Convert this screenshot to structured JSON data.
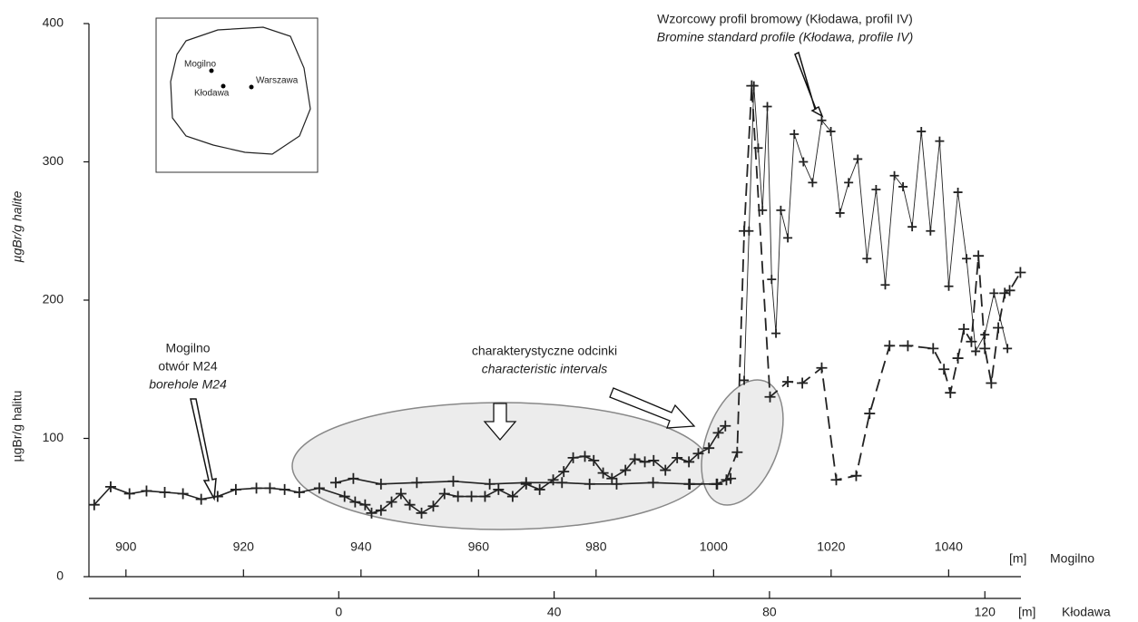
{
  "chart_data": {
    "type": "line",
    "y_title": "µgBr/g halite",
    "y_title_2": "µgBr/g halitu",
    "ylim": [
      0,
      400
    ],
    "yticks": [
      0,
      100,
      200,
      300,
      400
    ],
    "xlim": [
      893.7,
      1052.3
    ],
    "xticks": [
      900,
      920,
      940,
      960,
      980,
      1000,
      1020,
      1040
    ],
    "x_unit": "[m]",
    "x_name": "Mogilno",
    "x2lim": [
      -46.4,
      126.7
    ],
    "x2ticks": [
      0,
      40,
      80,
      120
    ],
    "x2_unit": "[m]",
    "x2_name": "Kłodawa",
    "annotations": {
      "standard_pl": "Wzorcowy profil bromowy (Kłodawa, profil IV)",
      "standard_en": "Bromine standard profile (Kłodawa, profile IV)",
      "bore_1": "Mogilno",
      "bore_2": "otwór M24",
      "bore_en": "borehole M24",
      "intervals_pl": "charakterystyczne odcinki",
      "intervals_en": "characteristic intervals"
    },
    "map_labels": [
      "Mogilno",
      "Kłodawa",
      "Warszawa"
    ],
    "series": [
      {
        "xaxis": "x",
        "color": "#222",
        "width": 1.6,
        "dash": "none",
        "marker_size": 6,
        "x": [
          894.6,
          897.4,
          900.6,
          903.5,
          906.6,
          909.7,
          912.8,
          915.6,
          918.7,
          922.2,
          924.5,
          927.0,
          929.5,
          932.9,
          937.2,
          939.0,
          940.7,
          941.8,
          943.4,
          945.2,
          946.8,
          948.3,
          950.3,
          952.3,
          954.2,
          956.5,
          958.8,
          961.1,
          963.4,
          965.8,
          968.1,
          970.4,
          972.7,
          974.5,
          976.1,
          978.1,
          979.6,
          981.2,
          982.7,
          985.0,
          986.6,
          988.3,
          989.8,
          991.8,
          993.8,
          995.8,
          997.4,
          999.2,
          1000.8,
          1002.0
        ],
        "values": [
          52,
          65,
          60,
          62,
          61,
          60,
          56,
          58,
          63,
          64,
          64,
          63,
          61,
          64,
          58,
          54,
          52,
          46,
          48,
          54,
          60,
          52,
          46,
          51,
          60,
          58,
          58,
          58,
          63,
          58,
          67,
          63,
          70,
          76,
          86,
          87,
          84,
          75,
          71,
          77,
          85,
          83,
          84,
          77,
          86,
          83,
          89,
          93,
          104,
          109
        ]
      },
      {
        "xaxis": "x",
        "color": "#222",
        "width": 1.6,
        "dash": "none",
        "marker_size": 6,
        "x": [
          935.7,
          938.7,
          943.4,
          949.5,
          955.7,
          961.9,
          968.1,
          974.2,
          978.9,
          983.5,
          989.7,
          995.8,
          1000.5,
          1002.9
        ],
        "values": [
          68,
          71,
          67,
          68,
          69,
          67,
          68,
          68,
          67,
          67,
          68,
          67,
          67,
          71
        ]
      },
      {
        "xaxis": "x2",
        "color": "#222",
        "width": 0.9,
        "dash": "none",
        "marker_size": 5,
        "x": [
          75.3,
          76.2,
          77.1,
          77.9,
          78.7,
          79.6,
          80.4,
          81.2,
          82.1,
          83.4,
          84.6,
          86.3,
          88.0,
          89.7,
          91.4,
          93.1,
          94.7,
          96.4,
          98.1,
          99.8,
          101.5,
          103.2,
          104.8,
          106.5,
          108.2,
          109.9,
          111.6,
          113.3,
          115.0,
          116.6,
          118.3,
          120.0,
          121.7,
          124.2
        ],
        "values": [
          142,
          250,
          355,
          310,
          265,
          340,
          215,
          176,
          265,
          245,
          320,
          300,
          285,
          330,
          322,
          263,
          285,
          302,
          230,
          280,
          211,
          290,
          282,
          253,
          322,
          250,
          315,
          210,
          278,
          230,
          163,
          175,
          205,
          165
        ]
      },
      {
        "xaxis": "x2",
        "color": "#222",
        "width": 1.8,
        "dash": "14 7",
        "marker_size": 6,
        "x": [
          65.2,
          70.3,
          72.0,
          74.0,
          75.3,
          76.7,
          80.1,
          83.4,
          86.1,
          89.7,
          92.4,
          96.1,
          98.6,
          102.3,
          105.7,
          110.4,
          112.4,
          113.6,
          115.0,
          116.1,
          117.5,
          118.8,
          120.0,
          121.2,
          122.5,
          123.7,
          124.6,
          126.6
        ],
        "values": [
          67,
          67,
          70,
          90,
          250,
          355,
          130,
          141,
          140,
          151,
          70,
          73,
          118,
          167,
          167,
          165,
          150,
          133,
          158,
          179,
          170,
          232,
          165,
          140,
          180,
          205,
          207,
          220
        ]
      }
    ]
  }
}
